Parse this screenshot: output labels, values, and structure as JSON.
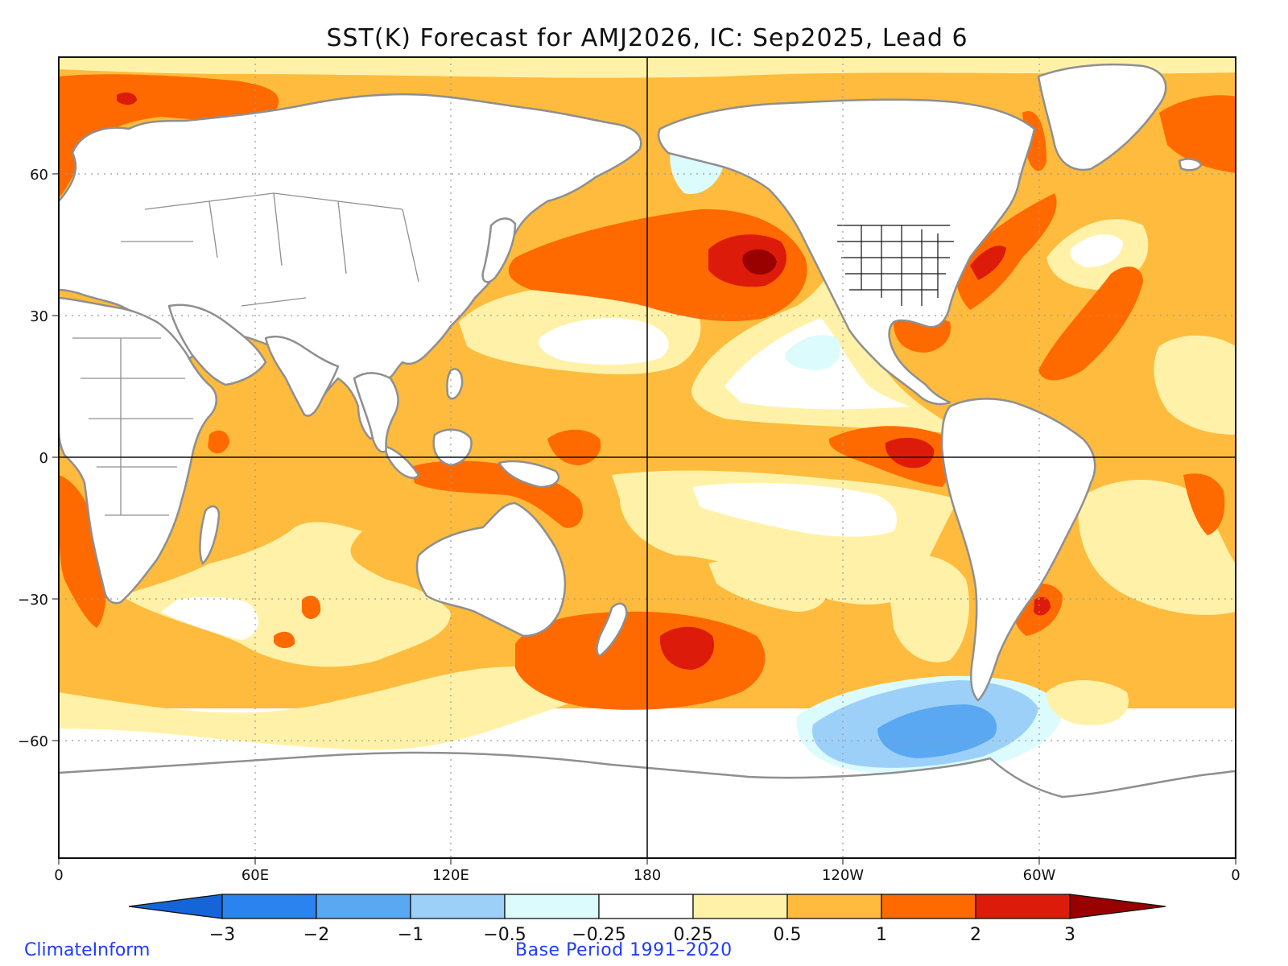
{
  "title": "SST(K) Forecast for AMJ2026, IC: Sep2025, Lead 6",
  "credit": "ClimateInform",
  "base_period": "Base Period 1991–2020",
  "x_ticks": [
    "0",
    "60E",
    "120E",
    "180",
    "120W",
    "60W",
    "0"
  ],
  "y_ticks": [
    "60",
    "30",
    "0",
    "−30",
    "−60"
  ],
  "colorbar": {
    "labels": [
      "−3",
      "−2",
      "−1",
      "−0.5",
      "−0.25",
      "0.25",
      "0.5",
      "1",
      "2",
      "3"
    ],
    "colors": [
      "#1565d8",
      "#2a83ee",
      "#5aa8f2",
      "#9dd0f8",
      "#dcfbfd",
      "#ffffff",
      "#fff2a8",
      "#ffbb3d",
      "#ff6a00",
      "#dd1b0a",
      "#990000"
    ]
  },
  "palette": {
    "land": "#ffffff",
    "coast": "#8f8f8f",
    "border": "#1a1a1a"
  }
}
